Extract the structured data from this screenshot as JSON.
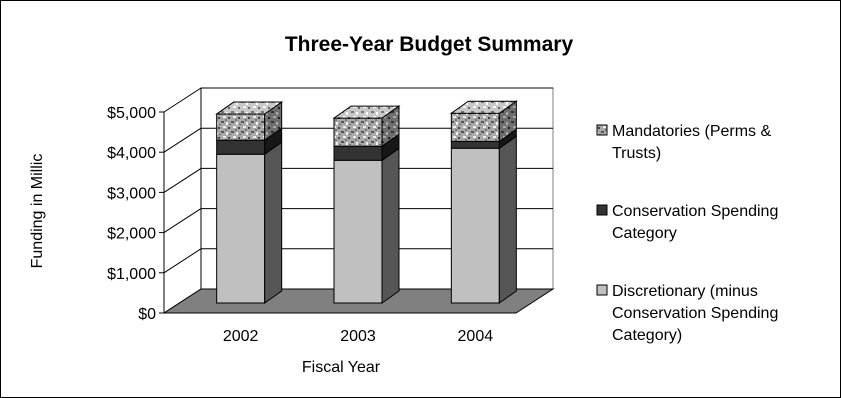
{
  "chart_data": {
    "type": "bar",
    "stacked": true,
    "three_d": true,
    "title": "Three-Year Budget Summary",
    "xlabel": "Fiscal Year",
    "ylabel": "Funding in Millic",
    "categories": [
      "2002",
      "2003",
      "2004"
    ],
    "ylim": [
      0,
      5000
    ],
    "yticks": [
      0,
      1000,
      2000,
      3000,
      4000,
      5000
    ],
    "ytick_labels": [
      "$0",
      "$1,000",
      "$2,000",
      "$3,000",
      "$4,000",
      "$5,000"
    ],
    "grid": true,
    "legend_position": "right",
    "series": [
      {
        "name": "Discretionary (minus Conservation Spending Category)",
        "legend_lines": [
          "Discretionary (minus",
          "Conservation Spending",
          "Category)"
        ],
        "values": [
          3700,
          3550,
          3850
        ],
        "color": "#c0c0c0",
        "pattern": "solid"
      },
      {
        "name": "Conservation Spending Category",
        "legend_lines": [
          "Conservation Spending",
          "Category"
        ],
        "values": [
          350,
          350,
          170
        ],
        "color": "#333333",
        "pattern": "solid"
      },
      {
        "name": "Mandatories (Perms & Trusts)",
        "legend_lines": [
          "Mandatories (Perms &",
          "Trusts)"
        ],
        "values": [
          650,
          700,
          700
        ],
        "color": "#999999",
        "pattern": "speckled"
      }
    ]
  }
}
